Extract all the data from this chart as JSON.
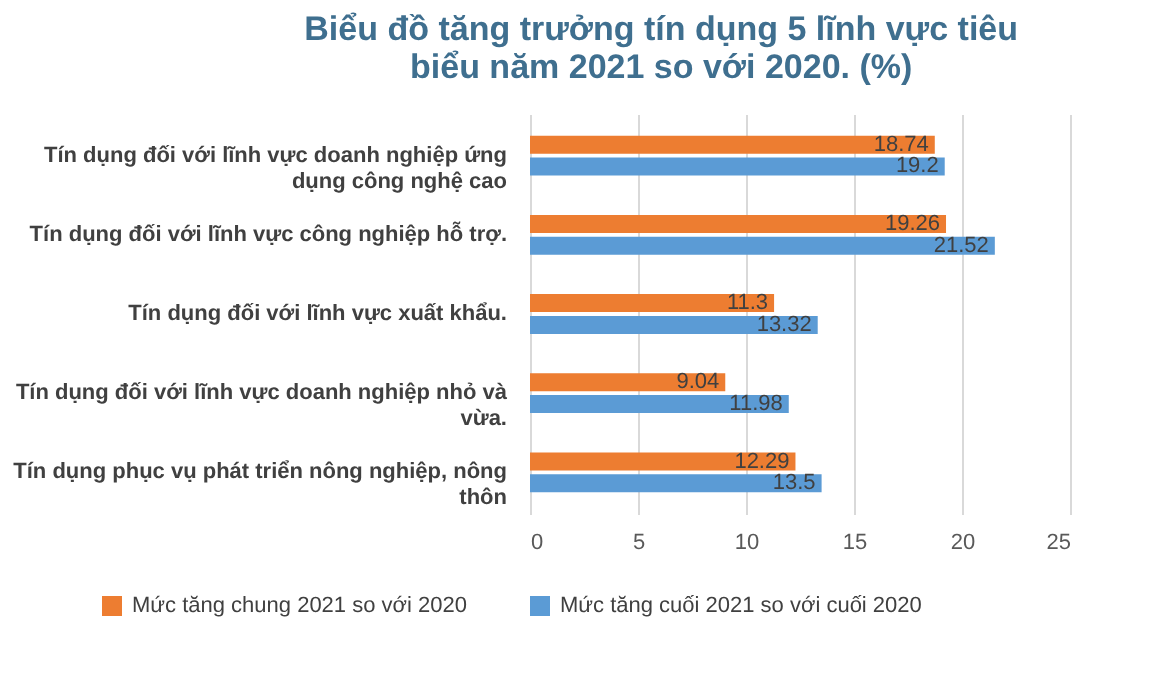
{
  "chart_data": {
    "type": "bar",
    "orientation": "horizontal",
    "title": "Biểu đồ tăng trưởng tín dụng 5 lĩnh vực tiêu biểu năm 2021 so với 2020. (%)",
    "categories": [
      "Tín dụng đối với lĩnh vực doanh nghiệp ứng dụng công nghệ cao",
      "Tín dụng đối với lĩnh vực công nghiệp hỗ trợ.",
      "Tín dụng đối với lĩnh vực xuất khẩu.",
      "Tín dụng đối với lĩnh vực doanh nghiệp nhỏ và vừa.",
      "Tín dụng phục vụ phát triển nông nghiệp, nông thôn"
    ],
    "series": [
      {
        "name": "Mức tăng chung 2021 so với 2020",
        "color": "#ed7d31",
        "values": [
          18.74,
          19.26,
          11.3,
          9.04,
          12.29
        ]
      },
      {
        "name": "Mức tăng cuối 2021 so với cuối 2020",
        "color": "#5b9bd5",
        "values": [
          19.2,
          21.52,
          13.32,
          11.98,
          13.5
        ]
      }
    ],
    "xlim": [
      0,
      25
    ],
    "xticks": [
      0,
      5,
      10,
      15,
      20,
      25
    ],
    "grid": "x",
    "legend": "bottom",
    "data_labels": true
  }
}
